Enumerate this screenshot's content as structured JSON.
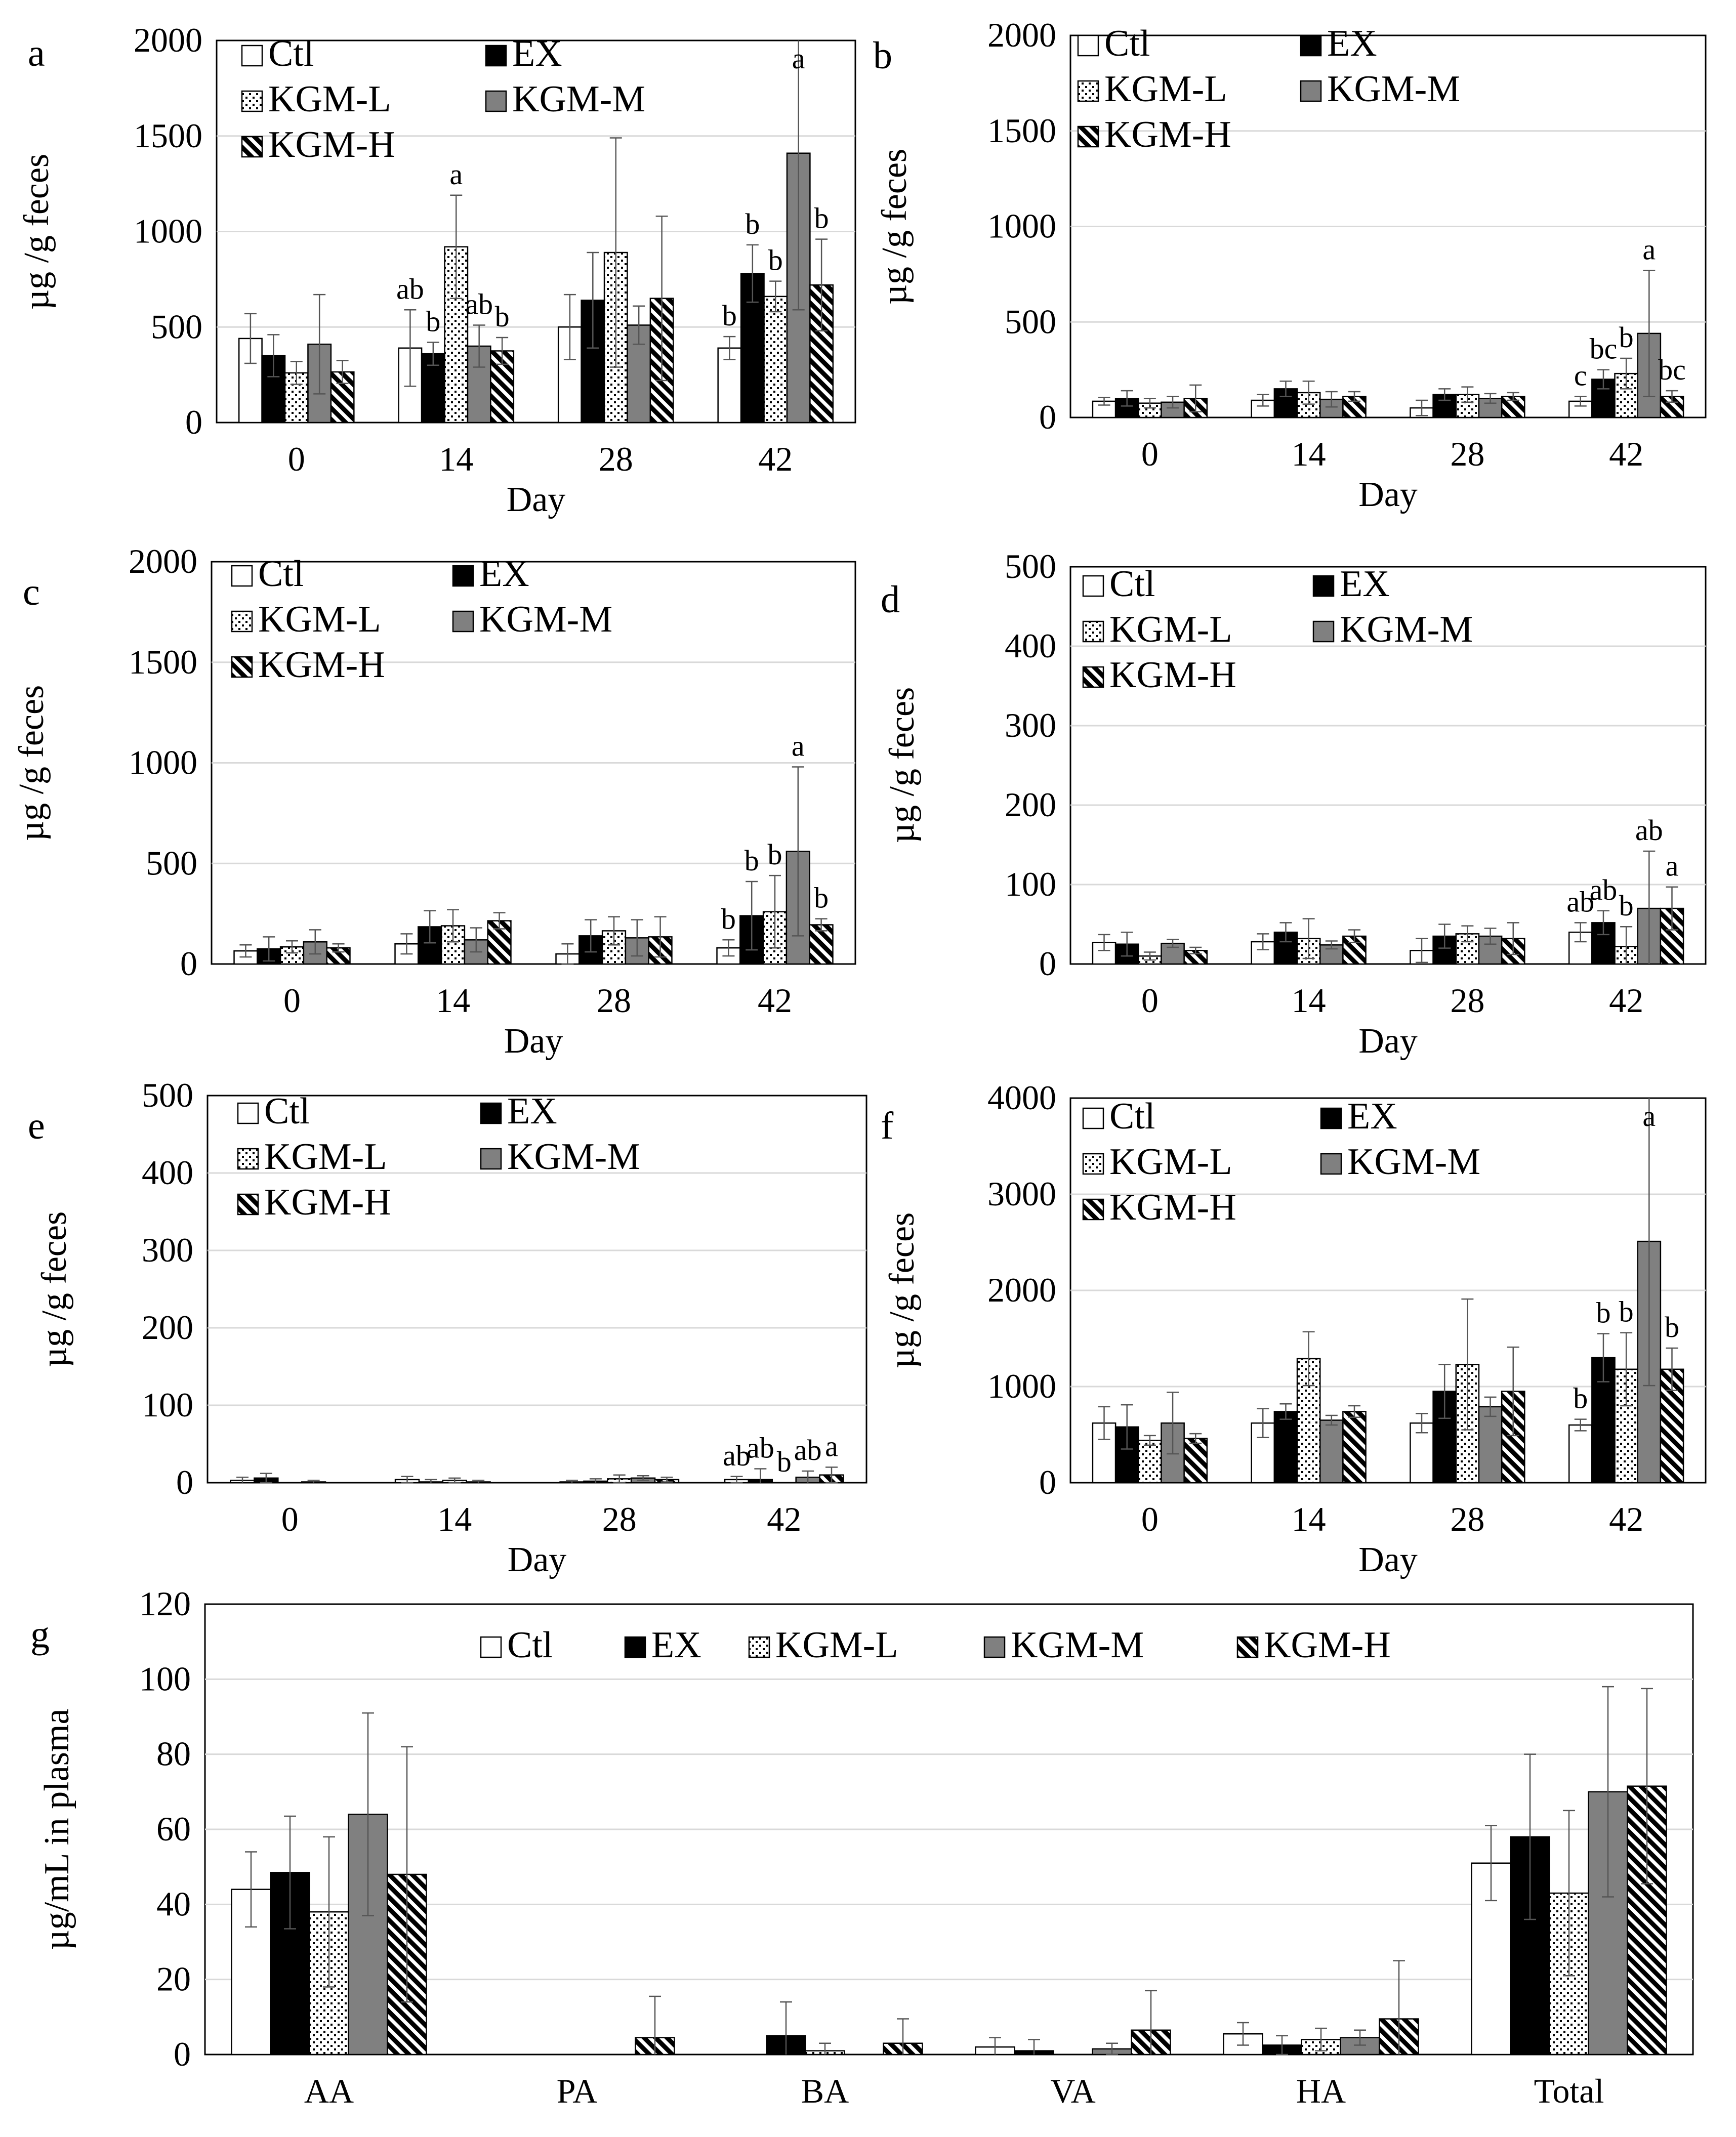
{
  "chart_data": [
    {
      "panel": "a",
      "type": "bar",
      "categories": [
        "0",
        "14",
        "28",
        "42"
      ],
      "xlabel": "Day",
      "ylabel": "µg /g feces",
      "ylim": [
        0,
        2000
      ],
      "yticks": [
        0,
        500,
        1000,
        1500,
        2000
      ],
      "legend": [
        "Ctl",
        "EX",
        "KGM-L",
        "KGM-M",
        "KGM-H"
      ],
      "series": [
        {
          "name": "Ctl",
          "values": [
            440,
            390,
            500,
            390
          ],
          "errors": [
            130,
            200,
            170,
            60
          ]
        },
        {
          "name": "EX",
          "values": [
            350,
            360,
            640,
            780
          ],
          "errors": [
            110,
            60,
            250,
            150
          ]
        },
        {
          "name": "KGM-L",
          "values": [
            260,
            920,
            890,
            660
          ],
          "errors": [
            60,
            270,
            600,
            80
          ]
        },
        {
          "name": "KGM-M",
          "values": [
            410,
            400,
            510,
            1410
          ],
          "errors": [
            260,
            110,
            100,
            820
          ]
        },
        {
          "name": "KGM-H",
          "values": [
            265,
            375,
            650,
            720
          ],
          "errors": [
            60,
            70,
            430,
            240
          ]
        }
      ],
      "letters": [
        {
          "day": 1,
          "series": 0,
          "text": "ab"
        },
        {
          "day": 1,
          "series": 1,
          "text": "b"
        },
        {
          "day": 1,
          "series": 2,
          "text": "a"
        },
        {
          "day": 1,
          "series": 3,
          "text": "ab"
        },
        {
          "day": 1,
          "series": 4,
          "text": "b"
        },
        {
          "day": 3,
          "series": 0,
          "text": "b"
        },
        {
          "day": 3,
          "series": 1,
          "text": "b"
        },
        {
          "day": 3,
          "series": 2,
          "text": "b"
        },
        {
          "day": 3,
          "series": 3,
          "text": "a"
        },
        {
          "day": 3,
          "series": 4,
          "text": "b"
        }
      ]
    },
    {
      "panel": "b",
      "type": "bar",
      "categories": [
        "0",
        "14",
        "28",
        "42"
      ],
      "xlabel": "Day",
      "ylabel": "µg /g feces",
      "ylim": [
        0,
        2000
      ],
      "yticks": [
        0,
        500,
        1000,
        1500,
        2000
      ],
      "legend": [
        "Ctl",
        "EX",
        "KGM-L",
        "KGM-M",
        "KGM-H"
      ],
      "series": [
        {
          "name": "Ctl",
          "values": [
            85,
            90,
            50,
            85
          ],
          "errors": [
            20,
            30,
            40,
            25
          ]
        },
        {
          "name": "EX",
          "values": [
            100,
            150,
            120,
            200
          ],
          "errors": [
            40,
            40,
            30,
            50
          ]
        },
        {
          "name": "KGM-L",
          "values": [
            75,
            130,
            120,
            230
          ],
          "errors": [
            25,
            60,
            40,
            80
          ]
        },
        {
          "name": "KGM-M",
          "values": [
            80,
            95,
            100,
            440
          ],
          "errors": [
            30,
            40,
            25,
            330
          ]
        },
        {
          "name": "KGM-H",
          "values": [
            100,
            110,
            110,
            110
          ],
          "errors": [
            70,
            25,
            20,
            30
          ]
        }
      ],
      "letters": [
        {
          "day": 3,
          "series": 0,
          "text": "c"
        },
        {
          "day": 3,
          "series": 1,
          "text": "bc"
        },
        {
          "day": 3,
          "series": 2,
          "text": "b"
        },
        {
          "day": 3,
          "series": 3,
          "text": "a"
        },
        {
          "day": 3,
          "series": 4,
          "text": "bc"
        }
      ]
    },
    {
      "panel": "c",
      "type": "bar",
      "categories": [
        "0",
        "14",
        "28",
        "42"
      ],
      "xlabel": "Day",
      "ylabel": "µg /g feces",
      "ylim": [
        0,
        2000
      ],
      "yticks": [
        0,
        500,
        1000,
        1500,
        2000
      ],
      "legend": [
        "Ctl",
        "EX",
        "KGM-L",
        "KGM-M",
        "KGM-H"
      ],
      "series": [
        {
          "name": "Ctl",
          "values": [
            65,
            100,
            50,
            80
          ],
          "errors": [
            30,
            50,
            50,
            40
          ]
        },
        {
          "name": "EX",
          "values": [
            75,
            185,
            140,
            240
          ],
          "errors": [
            60,
            80,
            80,
            170
          ]
        },
        {
          "name": "KGM-L",
          "values": [
            85,
            190,
            165,
            260
          ],
          "errors": [
            30,
            80,
            70,
            180
          ]
        },
        {
          "name": "KGM-M",
          "values": [
            110,
            120,
            130,
            560
          ],
          "errors": [
            60,
            60,
            90,
            420
          ]
        },
        {
          "name": "KGM-H",
          "values": [
            80,
            215,
            135,
            195
          ],
          "errors": [
            20,
            40,
            100,
            30
          ]
        }
      ],
      "letters": [
        {
          "day": 3,
          "series": 0,
          "text": "b"
        },
        {
          "day": 3,
          "series": 1,
          "text": "b"
        },
        {
          "day": 3,
          "series": 2,
          "text": "b"
        },
        {
          "day": 3,
          "series": 3,
          "text": "a"
        },
        {
          "day": 3,
          "series": 4,
          "text": "b"
        }
      ]
    },
    {
      "panel": "d",
      "type": "bar",
      "categories": [
        "0",
        "14",
        "28",
        "42"
      ],
      "xlabel": "Day",
      "ylabel": "µg /g feces",
      "ylim": [
        0,
        500
      ],
      "yticks": [
        0,
        100,
        200,
        300,
        400,
        500
      ],
      "legend": [
        "Ctl",
        "EX",
        "KGM-L",
        "KGM-M",
        "KGM-H"
      ],
      "series": [
        {
          "name": "Ctl",
          "values": [
            27,
            28,
            17,
            40
          ],
          "errors": [
            10,
            10,
            15,
            12
          ]
        },
        {
          "name": "EX",
          "values": [
            25,
            40,
            35,
            52
          ],
          "errors": [
            15,
            12,
            15,
            15
          ]
        },
        {
          "name": "KGM-L",
          "values": [
            10,
            32,
            38,
            22
          ],
          "errors": [
            5,
            25,
            10,
            25
          ]
        },
        {
          "name": "KGM-M",
          "values": [
            26,
            24,
            35,
            70
          ],
          "errors": [
            5,
            5,
            10,
            72
          ]
        },
        {
          "name": "KGM-H",
          "values": [
            17,
            35,
            32,
            70
          ],
          "errors": [
            4,
            8,
            20,
            27
          ]
        }
      ],
      "letters": [
        {
          "day": 3,
          "series": 0,
          "text": "ab"
        },
        {
          "day": 3,
          "series": 1,
          "text": "ab"
        },
        {
          "day": 3,
          "series": 2,
          "text": "b"
        },
        {
          "day": 3,
          "series": 3,
          "text": "ab"
        },
        {
          "day": 3,
          "series": 4,
          "text": "a"
        }
      ]
    },
    {
      "panel": "e",
      "type": "bar",
      "categories": [
        "0",
        "14",
        "28",
        "42"
      ],
      "xlabel": "Day",
      "ylabel": "µg /g feces",
      "ylim": [
        0,
        500
      ],
      "yticks": [
        0,
        100,
        200,
        300,
        400,
        500
      ],
      "legend": [
        "Ctl",
        "EX",
        "KGM-L",
        "KGM-M",
        "KGM-H"
      ],
      "series": [
        {
          "name": "Ctl",
          "values": [
            3,
            4,
            1,
            4
          ],
          "errors": [
            4,
            4,
            2,
            4
          ]
        },
        {
          "name": "EX",
          "values": [
            6,
            1,
            2,
            4
          ],
          "errors": [
            6,
            3,
            3,
            14
          ]
        },
        {
          "name": "KGM-L",
          "values": [
            0,
            3,
            5,
            0
          ],
          "errors": [
            0,
            3,
            5,
            0
          ]
        },
        {
          "name": "KGM-M",
          "values": [
            1,
            1,
            6,
            7
          ],
          "errors": [
            2,
            2,
            3,
            8
          ]
        },
        {
          "name": "KGM-H",
          "values": [
            0,
            0,
            4,
            10
          ],
          "errors": [
            0,
            0,
            3,
            10
          ]
        }
      ],
      "letters": [
        {
          "day": 3,
          "series": 0,
          "text": "ab"
        },
        {
          "day": 3,
          "series": 1,
          "text": "ab"
        },
        {
          "day": 3,
          "series": 2,
          "text": "b"
        },
        {
          "day": 3,
          "series": 3,
          "text": "ab"
        },
        {
          "day": 3,
          "series": 4,
          "text": "a"
        }
      ]
    },
    {
      "panel": "f",
      "type": "bar",
      "categories": [
        "0",
        "14",
        "28",
        "42"
      ],
      "xlabel": "Day",
      "ylabel": "µg /g feces",
      "ylim": [
        0,
        4000
      ],
      "yticks": [
        0,
        1000,
        2000,
        3000,
        4000
      ],
      "legend": [
        "Ctl",
        "EX",
        "KGM-L",
        "KGM-M",
        "KGM-H"
      ],
      "series": [
        {
          "name": "Ctl",
          "values": [
            620,
            620,
            620,
            600
          ],
          "errors": [
            170,
            150,
            100,
            60
          ]
        },
        {
          "name": "EX",
          "values": [
            580,
            740,
            950,
            1300
          ],
          "errors": [
            230,
            80,
            280,
            250
          ]
        },
        {
          "name": "KGM-L",
          "values": [
            440,
            1290,
            1230,
            1180
          ],
          "errors": [
            50,
            280,
            680,
            380
          ]
        },
        {
          "name": "KGM-M",
          "values": [
            620,
            650,
            790,
            2510
          ],
          "errors": [
            320,
            50,
            100,
            1500
          ]
        },
        {
          "name": "KGM-H",
          "values": [
            460,
            740,
            950,
            1180
          ],
          "errors": [
            50,
            60,
            460,
            220
          ]
        }
      ],
      "letters": [
        {
          "day": 3,
          "series": 0,
          "text": "b"
        },
        {
          "day": 3,
          "series": 1,
          "text": "b"
        },
        {
          "day": 3,
          "series": 2,
          "text": "b"
        },
        {
          "day": 3,
          "series": 3,
          "text": "a"
        },
        {
          "day": 3,
          "series": 4,
          "text": "b"
        }
      ]
    },
    {
      "panel": "g",
      "type": "bar",
      "categories": [
        "AA",
        "PA",
        "BA",
        "VA",
        "HA",
        "Total"
      ],
      "xlabel": "",
      "ylabel": "µg/mL in plasma",
      "ylim": [
        0,
        120
      ],
      "yticks": [
        0,
        20,
        40,
        60,
        80,
        100,
        120
      ],
      "legend": [
        "Ctl",
        "EX",
        "KGM-L",
        "KGM-M",
        "KGM-H"
      ],
      "series": [
        {
          "name": "Ctl",
          "values": [
            44,
            0,
            0,
            2,
            5.5,
            51
          ],
          "errors": [
            10,
            0,
            0,
            2.5,
            3,
            10
          ]
        },
        {
          "name": "EX",
          "values": [
            48.5,
            0,
            5,
            1,
            2.5,
            58
          ],
          "errors": [
            15,
            0,
            9,
            3,
            2.5,
            22
          ]
        },
        {
          "name": "KGM-L",
          "values": [
            38,
            0,
            1,
            0,
            4,
            43
          ],
          "errors": [
            20,
            0,
            2,
            0,
            3,
            22
          ]
        },
        {
          "name": "KGM-M",
          "values": [
            64,
            0,
            0,
            1.5,
            4.5,
            70
          ],
          "errors": [
            27,
            0,
            0,
            1.5,
            2,
            28
          ]
        },
        {
          "name": "KGM-H",
          "values": [
            48,
            4.5,
            3,
            6.5,
            9.5,
            71.5
          ],
          "errors": [
            34,
            11,
            6.5,
            10.5,
            15.5,
            26
          ]
        }
      ],
      "letters": []
    }
  ]
}
